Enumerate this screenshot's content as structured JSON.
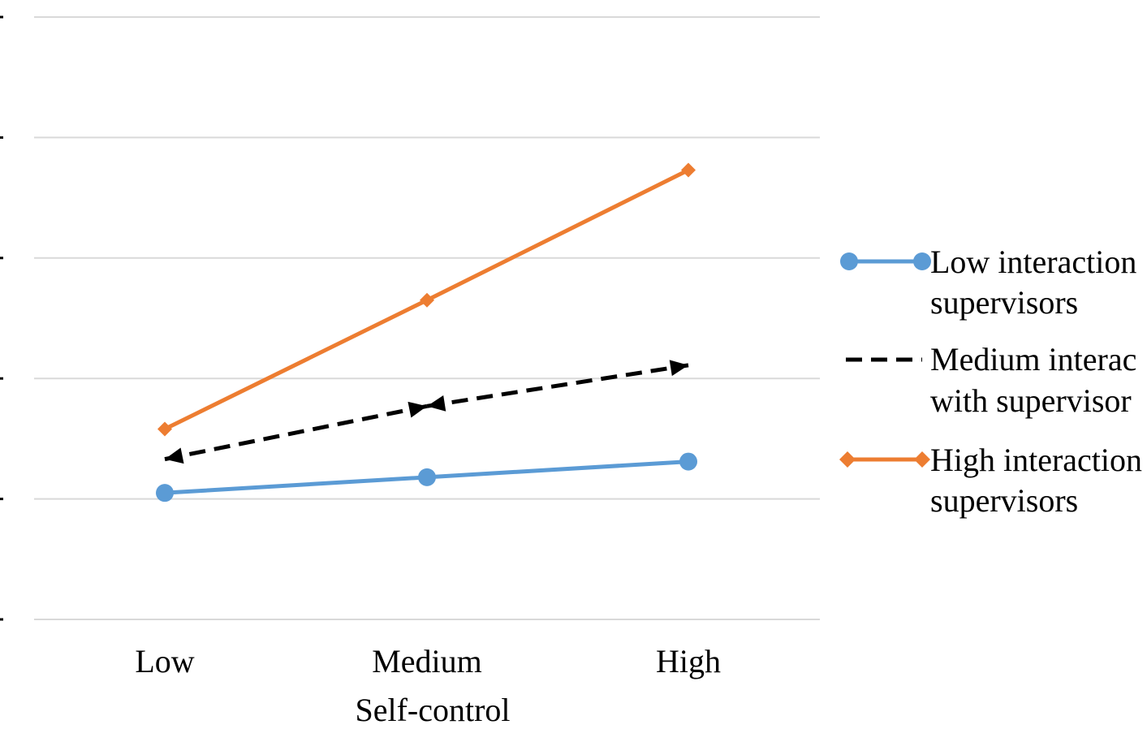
{
  "chart_data": {
    "type": "line",
    "title": "",
    "xlabel": "Self-control",
    "ylabel": "",
    "categories": [
      "Low",
      "Medium",
      "High"
    ],
    "ylim": [
      0,
      5
    ],
    "grid": true,
    "legend_position": "right",
    "series": [
      {
        "name_lines": [
          "Low interaction",
          "supervisors"
        ],
        "values": [
          1.05,
          1.18,
          1.31
        ],
        "color": "#5b9bd5",
        "marker": "circle",
        "dash": "solid"
      },
      {
        "name_lines": [
          "Medium interac",
          "with supervisor"
        ],
        "values": [
          1.33,
          1.77,
          2.11
        ],
        "color": "#000000",
        "marker": "arrow",
        "dash": "dashed"
      },
      {
        "name_lines": [
          "High interaction",
          "supervisors"
        ],
        "values": [
          1.58,
          2.65,
          3.73
        ],
        "color": "#ed7d31",
        "marker": "diamond",
        "dash": "solid"
      }
    ]
  }
}
